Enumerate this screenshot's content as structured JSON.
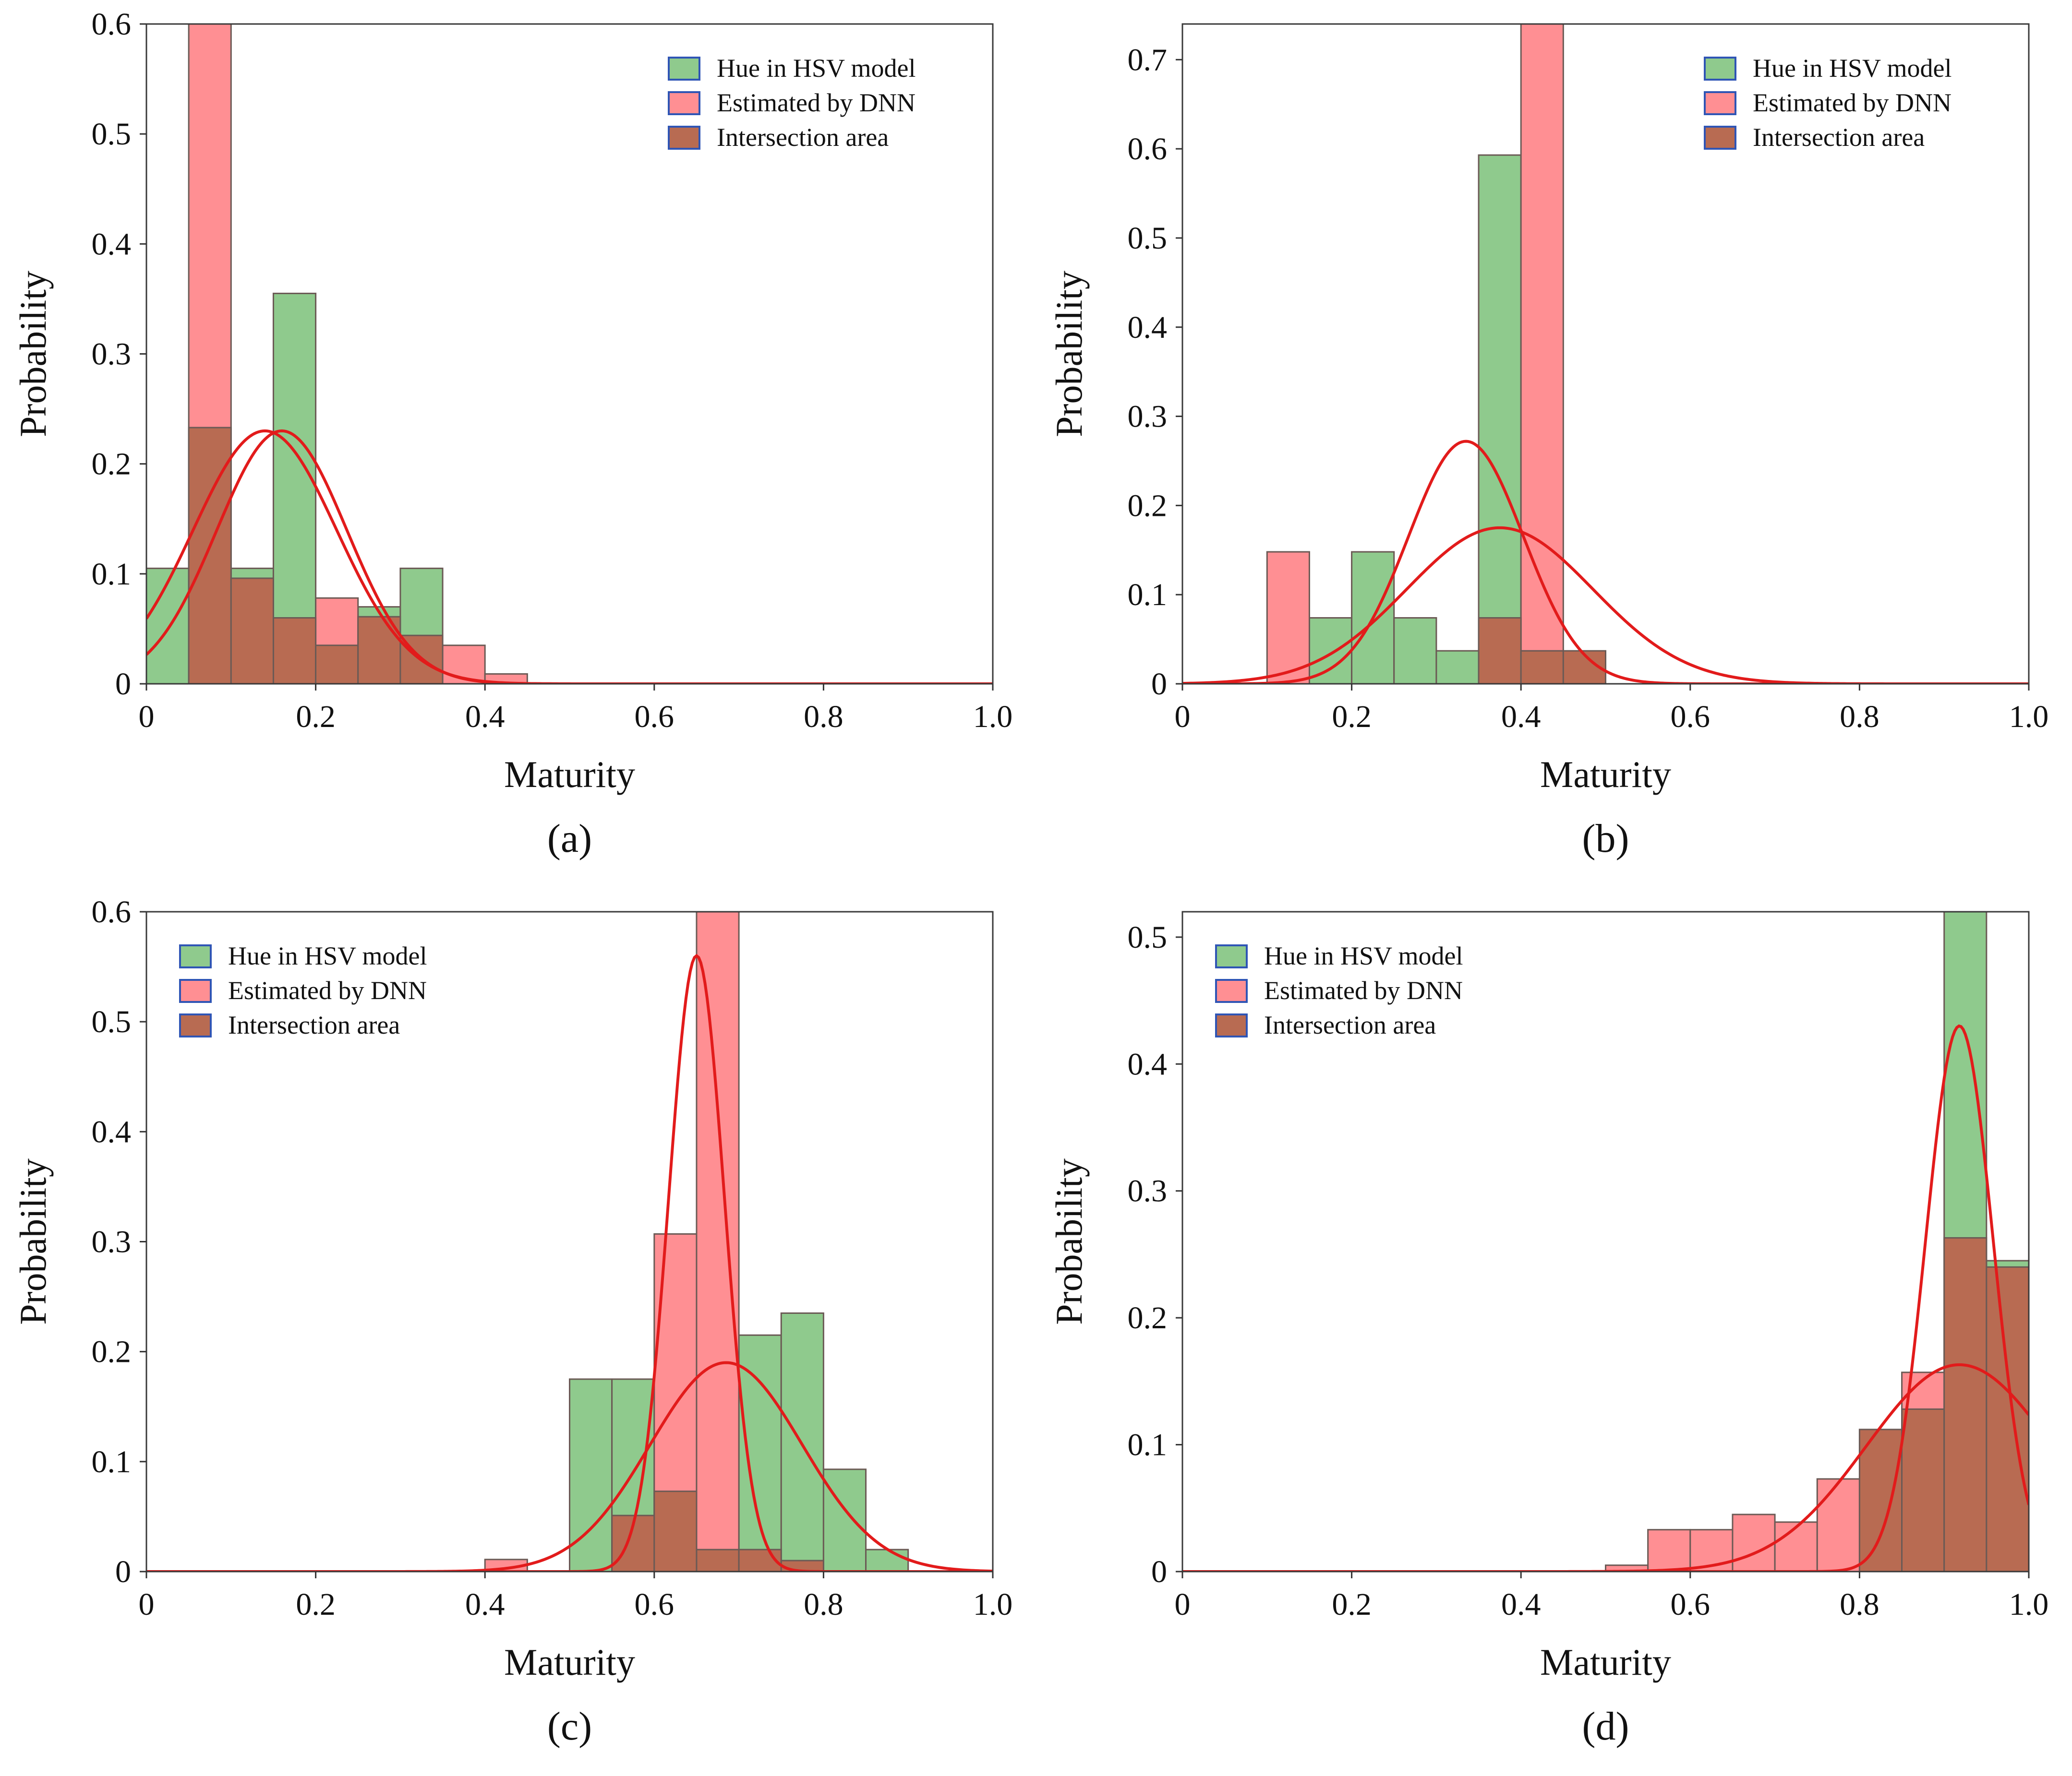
{
  "colors": {
    "hue": "#8fca8d",
    "dnn": "#ff8f93",
    "intersection": "#b86b52",
    "curve": "#e21b1b",
    "bar_edge": "#6b5a55",
    "legend_edge": "#2f55b5"
  },
  "legend": {
    "hue": "Hue in HSV model",
    "dnn": "Estimated by DNN",
    "intersection": "Intersection area"
  },
  "chart_data": [
    {
      "type": "bar",
      "panel_label": "(a)",
      "xlabel": "Maturity",
      "ylabel": "Probability",
      "xlim": [
        0,
        1.0
      ],
      "ylim": [
        0,
        0.6
      ],
      "xticks": [
        "0",
        "0.2",
        "0.4",
        "0.6",
        "0.8",
        "1.0"
      ],
      "yticks": [
        "0",
        "0.1",
        "0.2",
        "0.3",
        "0.4",
        "0.5",
        "0.6"
      ],
      "legend_position": "top-right",
      "bin_width": 0.05,
      "bin_starts": [
        0.0,
        0.05,
        0.1,
        0.15,
        0.2,
        0.25,
        0.3,
        0.35,
        0.4
      ],
      "series": [
        {
          "name": "Hue in HSV model",
          "values": [
            0.105,
            0.0,
            0.105,
            0.355,
            0.0,
            0.07,
            0.105,
            0.0,
            0.0
          ]
        },
        {
          "name": "Estimated by DNN",
          "values": [
            0.0,
            0.6,
            0.0,
            0.0,
            0.078,
            0.0,
            0.0,
            0.035,
            0.009
          ]
        },
        {
          "name": "Intersection area",
          "values": [
            0.0,
            0.233,
            0.096,
            0.06,
            0.035,
            0.061,
            0.044,
            0.0,
            0.0
          ]
        }
      ],
      "curves": [
        {
          "mean": 0.14,
          "sd": 0.085,
          "peak": 0.23
        },
        {
          "mean": 0.16,
          "sd": 0.077,
          "peak": 0.23
        }
      ]
    },
    {
      "type": "bar",
      "panel_label": "(b)",
      "xlabel": "Maturity",
      "ylabel": "Probability",
      "xlim": [
        0,
        1.0
      ],
      "ylim": [
        0,
        0.74
      ],
      "xticks": [
        "0",
        "0.2",
        "0.4",
        "0.6",
        "0.8",
        "1.0"
      ],
      "yticks": [
        "0",
        "0.1",
        "0.2",
        "0.3",
        "0.4",
        "0.5",
        "0.6",
        "0.7"
      ],
      "legend_position": "top-right",
      "bin_width": 0.05,
      "bin_starts": [
        0.1,
        0.15,
        0.2,
        0.25,
        0.3,
        0.35,
        0.4,
        0.45
      ],
      "series": [
        {
          "name": "Hue in HSV model",
          "values": [
            0.0,
            0.074,
            0.148,
            0.074,
            0.037,
            0.593,
            0.0,
            0.0
          ]
        },
        {
          "name": "Estimated by DNN",
          "values": [
            0.148,
            0.0,
            0.0,
            0.0,
            0.0,
            0.0,
            0.74,
            0.0
          ]
        },
        {
          "name": "Intersection area",
          "values": [
            0.0,
            0.0,
            0.0,
            0.0,
            0.0,
            0.074,
            0.037,
            0.037
          ]
        }
      ],
      "curves": [
        {
          "mean": 0.335,
          "sd": 0.068,
          "peak": 0.272
        },
        {
          "mean": 0.375,
          "sd": 0.11,
          "peak": 0.175
        }
      ]
    },
    {
      "type": "bar",
      "panel_label": "(c)",
      "xlabel": "Maturity",
      "ylabel": "Probability",
      "xlim": [
        0,
        1.0
      ],
      "ylim": [
        0,
        0.6
      ],
      "xticks": [
        "0",
        "0.2",
        "0.4",
        "0.6",
        "0.8",
        "1.0"
      ],
      "yticks": [
        "0",
        "0.1",
        "0.2",
        "0.3",
        "0.4",
        "0.5",
        "0.6"
      ],
      "legend_position": "top-left",
      "bin_width": 0.05,
      "bin_starts": [
        0.4,
        0.45,
        0.5,
        0.55,
        0.6,
        0.65,
        0.7,
        0.75,
        0.8,
        0.85
      ],
      "series": [
        {
          "name": "Hue in HSV model",
          "values": [
            0.0,
            0.0,
            0.175,
            0.175,
            0.0,
            0.0,
            0.215,
            0.235,
            0.093,
            0.02
          ]
        },
        {
          "name": "Estimated by DNN",
          "values": [
            0.011,
            0.0,
            0.0,
            0.0,
            0.307,
            0.6,
            0.0,
            0.0,
            0.0,
            0.0
          ]
        },
        {
          "name": "Intersection area",
          "values": [
            0.0,
            0.0,
            0.0,
            0.051,
            0.073,
            0.02,
            0.02,
            0.01,
            0.0,
            0.0
          ]
        }
      ],
      "curves": [
        {
          "mean": 0.65,
          "sd": 0.033,
          "peak": 0.56
        },
        {
          "mean": 0.685,
          "sd": 0.09,
          "peak": 0.19
        }
      ]
    },
    {
      "type": "bar",
      "panel_label": "(d)",
      "xlabel": "Maturity",
      "ylabel": "Probability",
      "xlim": [
        0,
        1.0
      ],
      "ylim": [
        0,
        0.52
      ],
      "xticks": [
        "0",
        "0.2",
        "0.4",
        "0.6",
        "0.8",
        "1.0"
      ],
      "yticks": [
        "0",
        "0.1",
        "0.2",
        "0.3",
        "0.4",
        "0.5"
      ],
      "legend_position": "top-left",
      "bin_width": 0.05,
      "bin_starts": [
        0.5,
        0.55,
        0.6,
        0.65,
        0.7,
        0.75,
        0.8,
        0.85,
        0.9,
        0.95
      ],
      "series": [
        {
          "name": "Hue in HSV model",
          "values": [
            0.0,
            0.0,
            0.0,
            0.0,
            0.0,
            0.0,
            0.0,
            0.0,
            0.52,
            0.245
          ]
        },
        {
          "name": "Estimated by DNN",
          "values": [
            0.005,
            0.033,
            0.033,
            0.045,
            0.039,
            0.073,
            0.0,
            0.157,
            0.0,
            0.0
          ]
        },
        {
          "name": "Intersection area",
          "values": [
            0.0,
            0.0,
            0.0,
            0.0,
            0.0,
            0.0,
            0.112,
            0.128,
            0.263,
            0.24
          ]
        }
      ],
      "curves": [
        {
          "mean": 0.918,
          "sd": 0.04,
          "peak": 0.43
        },
        {
          "mean": 0.918,
          "sd": 0.11,
          "peak": 0.163
        }
      ]
    }
  ]
}
